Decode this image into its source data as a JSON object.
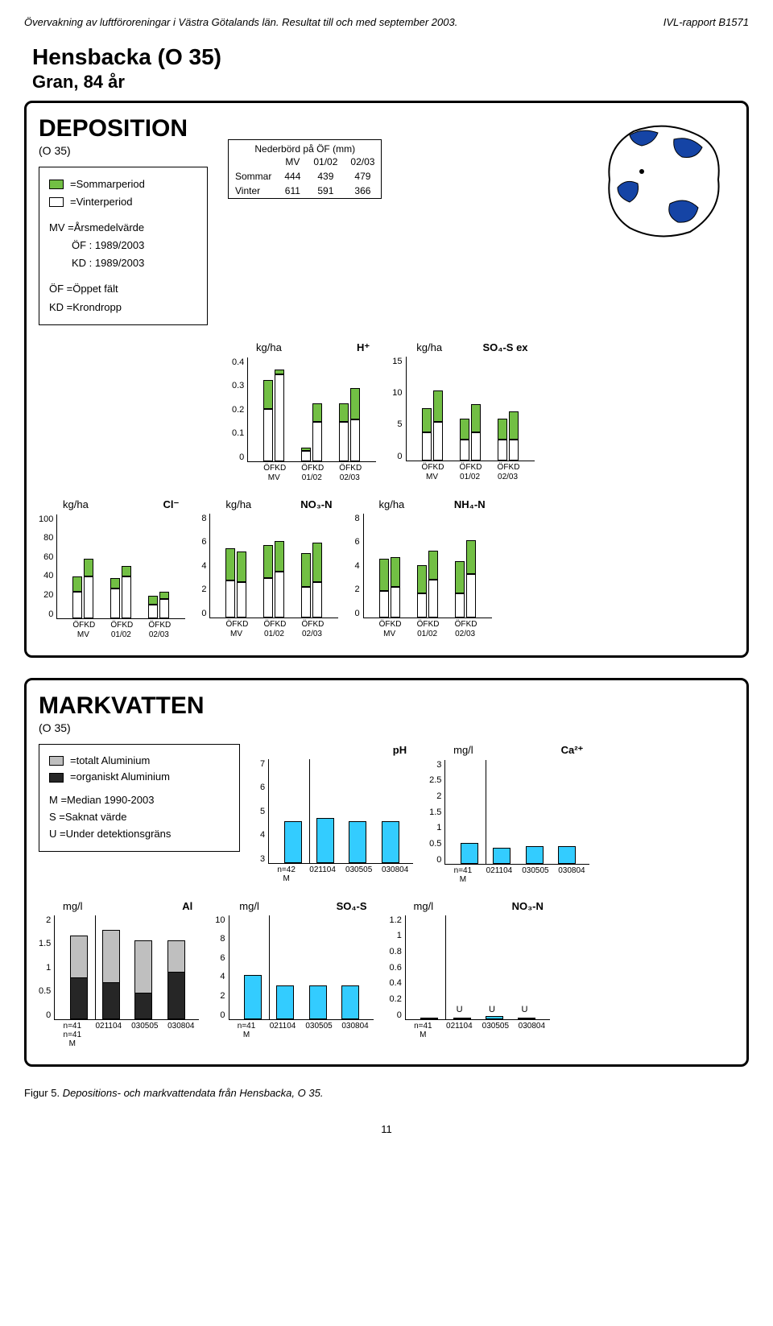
{
  "header": {
    "left": "Övervakning av luftföroreningar i Västra Götalands län. Resultat till och med september 2003.",
    "right": "IVL-rapport B1571"
  },
  "title": {
    "site": "Hensbacka (O 35)",
    "species": "Gran, 84 år"
  },
  "colors": {
    "summer": "#72bf44",
    "winter": "#ffffff",
    "map_land": "#ffffff",
    "map_water": "#1544a5",
    "mv_water": "#33ccff",
    "al_total": "#bfbfbf",
    "al_org": "#262626",
    "border": "#000000"
  },
  "deposition": {
    "heading": "DEPOSITION",
    "sub": "(O 35)",
    "legend": [
      {
        "color": "#72bf44",
        "label": "=Sommarperiod"
      },
      {
        "color": "#ffffff",
        "label": "=Vinterperiod"
      }
    ],
    "legend2": [
      "MV =Årsmedelvärde",
      "ÖF : 1989/2003",
      "KD : 1989/2003",
      "ÖF =Öppet fält",
      "KD =Krondropp"
    ],
    "precip": {
      "caption": "Nederbörd på ÖF (mm)",
      "cols": [
        "",
        "MV",
        "01/02",
        "02/03"
      ],
      "rows": [
        [
          "Sommar",
          444,
          439,
          479
        ],
        [
          "Vinter",
          611,
          591,
          366
        ]
      ]
    },
    "charts": [
      {
        "title_left": "kg/ha",
        "title_right": "H⁺",
        "ymax": 0.4,
        "ytick": 0.1,
        "groups": [
          {
            "label": "MV",
            "bars": [
              [
                "ÖF",
                0.2,
                0.11
              ],
              [
                "KD",
                0.33,
                0.02
              ]
            ]
          },
          {
            "label": "01/02",
            "bars": [
              [
                "ÖF",
                0.04,
                0.01
              ],
              [
                "KD",
                0.15,
                0.07
              ]
            ]
          },
          {
            "label": "02/03",
            "bars": [
              [
                "ÖF",
                0.15,
                0.07
              ],
              [
                "KD",
                0.16,
                0.12
              ]
            ]
          }
        ]
      },
      {
        "title_left": "kg/ha",
        "title_right": "SO₄-S ex",
        "ymax": 15,
        "ytick": 5,
        "groups": [
          {
            "label": "MV",
            "bars": [
              [
                "ÖF",
                4.0,
                3.5
              ],
              [
                "KD",
                5.5,
                4.5
              ]
            ]
          },
          {
            "label": "01/02",
            "bars": [
              [
                "ÖF",
                3.0,
                3.0
              ],
              [
                "KD",
                4.0,
                4.0
              ]
            ]
          },
          {
            "label": "02/03",
            "bars": [
              [
                "ÖF",
                3.0,
                3.0
              ],
              [
                "KD",
                3.0,
                4.0
              ]
            ]
          }
        ]
      },
      {
        "title_left": "kg/ha",
        "title_right": "Cl⁻",
        "ymax": 100,
        "ytick": 20,
        "groups": [
          {
            "label": "MV",
            "bars": [
              [
                "ÖF",
                25,
                15
              ],
              [
                "KD",
                40,
                17
              ]
            ]
          },
          {
            "label": "01/02",
            "bars": [
              [
                "ÖF",
                28,
                10
              ],
              [
                "KD",
                40,
                10
              ]
            ]
          },
          {
            "label": "02/03",
            "bars": [
              [
                "ÖF",
                13,
                8
              ],
              [
                "KD",
                18,
                7
              ]
            ]
          }
        ]
      },
      {
        "title_left": "kg/ha",
        "title_right": "NO₃-N",
        "ymax": 8,
        "ytick": 2,
        "groups": [
          {
            "label": "MV",
            "bars": [
              [
                "ÖF",
                2.8,
                2.5
              ],
              [
                "KD",
                2.7,
                2.3
              ]
            ]
          },
          {
            "label": "01/02",
            "bars": [
              [
                "ÖF",
                3.0,
                2.5
              ],
              [
                "KD",
                3.5,
                2.3
              ]
            ]
          },
          {
            "label": "02/03",
            "bars": [
              [
                "ÖF",
                2.3,
                2.6
              ],
              [
                "KD",
                2.7,
                3.0
              ]
            ]
          }
        ]
      },
      {
        "title_left": "kg/ha",
        "title_right": "NH₄-N",
        "ymax": 8,
        "ytick": 2,
        "groups": [
          {
            "label": "MV",
            "bars": [
              [
                "ÖF",
                2.0,
                2.5
              ],
              [
                "KD",
                2.3,
                2.3
              ]
            ]
          },
          {
            "label": "01/02",
            "bars": [
              [
                "ÖF",
                1.8,
                2.2
              ],
              [
                "KD",
                2.9,
                2.2
              ]
            ]
          },
          {
            "label": "02/03",
            "bars": [
              [
                "ÖF",
                1.8,
                2.5
              ],
              [
                "KD",
                3.3,
                2.6
              ]
            ]
          }
        ]
      }
    ]
  },
  "markvatten": {
    "heading": "MARKVATTEN",
    "sub": "(O 35)",
    "legend_colors": [
      {
        "color": "#bfbfbf",
        "label": "=totalt Aluminium"
      },
      {
        "color": "#262626",
        "label": "=organiskt Aluminium"
      }
    ],
    "legend_text": [
      "M =Median 1990-2003",
      "S =Saknat värde",
      "U =Under detektionsgräns"
    ],
    "x_labels": [
      "n=",
      "021104",
      "030804"
    ],
    "x_sub": [
      "M",
      "",
      "030505",
      ""
    ],
    "charts": [
      {
        "title_left": "",
        "title_right": "pH",
        "ymax": 7,
        "ymin": 3,
        "ytick": 1,
        "color": "#33ccff",
        "bars": [
          {
            "label": "n=42\nM",
            "v": 4.6
          },
          {
            "label": "021104",
            "v": 4.7
          },
          {
            "label": "030505",
            "v": 4.6
          },
          {
            "label": "030804",
            "v": 4.6
          }
        ]
      },
      {
        "title_left": "mg/l",
        "title_right": "Ca²⁺",
        "ymax": 3,
        "ymin": 0,
        "ytick": 0.5,
        "color": "#33ccff",
        "bars": [
          {
            "label": "n=41\nM",
            "v": 0.6
          },
          {
            "label": "021104",
            "v": 0.45
          },
          {
            "label": "030505",
            "v": 0.5
          },
          {
            "label": "030804",
            "v": 0.5
          }
        ]
      },
      {
        "title_left": "mg/l",
        "title_right": "Al",
        "ymax": 2,
        "ymin": 0,
        "ytick": 0.5,
        "stacked": true,
        "bars": [
          {
            "label": "n=41\nn=41\nM",
            "total": 1.6,
            "org": 0.8
          },
          {
            "label": "021104",
            "total": 1.7,
            "org": 0.7
          },
          {
            "label": "030505",
            "total": 1.5,
            "org": 0.5
          },
          {
            "label": "030804",
            "total": 1.5,
            "org": 0.9
          }
        ]
      },
      {
        "title_left": "mg/l",
        "title_right": "SO₄-S",
        "ymax": 10,
        "ymin": 0,
        "ytick": 2,
        "color": "#33ccff",
        "bars": [
          {
            "label": "n=41\nM",
            "v": 4.2
          },
          {
            "label": "021104",
            "v": 3.2
          },
          {
            "label": "030505",
            "v": 3.2
          },
          {
            "label": "030804",
            "v": 3.2
          }
        ]
      },
      {
        "title_left": "mg/l",
        "title_right": "NO₃-N",
        "ymax": 1.2,
        "ymin": 0,
        "ytick": 0.2,
        "color": "#33ccff",
        "bars": [
          {
            "label": "n=41\nM",
            "v": 0.02
          },
          {
            "label": "021104",
            "v": 0,
            "u": "U"
          },
          {
            "label": "030505",
            "v": 0.03,
            "u": "U"
          },
          {
            "label": "030804",
            "v": 0,
            "u": "U"
          }
        ]
      }
    ]
  },
  "figcaption": {
    "num": "Figur 5.",
    "text": "Depositions- och markvattendata från Hensbacka, O 35."
  },
  "pagenum": "11",
  "plot_dims": {
    "dep_w": 160,
    "dep_h": 130,
    "mv_w": 180,
    "mv_h": 130
  }
}
